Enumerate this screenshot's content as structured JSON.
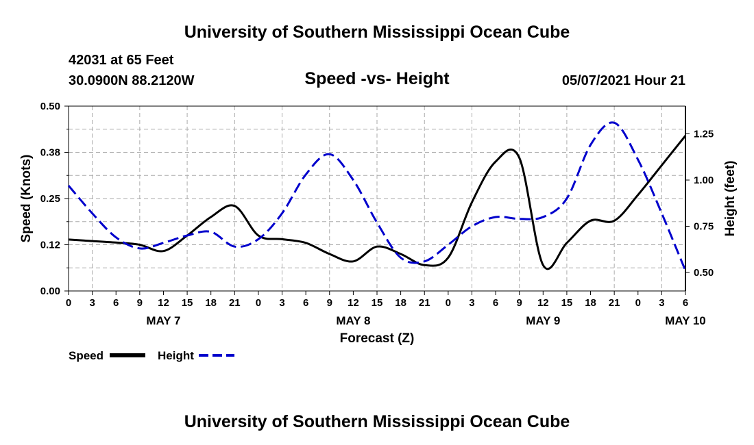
{
  "header": {
    "title": "University of Southern Mississippi Ocean Cube",
    "station": "42031 at 65 Feet",
    "coords": "30.0900N  88.2120W",
    "subtitle": "Speed -vs- Height",
    "datetime": "05/07/2021 Hour 21"
  },
  "footer": {
    "title": "University of Southern Mississippi Ocean Cube"
  },
  "legend": {
    "speed_label": "Speed",
    "height_label": "Height"
  },
  "colors": {
    "speed": "#000000",
    "height": "#0000cc",
    "grid": "#aaaaaa"
  },
  "chart_data": {
    "type": "line",
    "title": "Speed -vs- Height",
    "xlabel": "Forecast (Z)",
    "ylabel": "Speed (Knots)",
    "y2label": "Height (feet)",
    "xlim": [
      0,
      78
    ],
    "ylim": [
      0,
      0.5
    ],
    "y2lim": [
      0.4,
      1.4
    ],
    "x_ticks": [
      0,
      3,
      6,
      9,
      12,
      15,
      18,
      21,
      24,
      27,
      30,
      33,
      36,
      39,
      42,
      45,
      48,
      51,
      54,
      57,
      60,
      63,
      66,
      69,
      72,
      75,
      78
    ],
    "x_tick_labels": [
      "0",
      "3",
      "6",
      "9",
      "12",
      "15",
      "18",
      "21",
      "0",
      "3",
      "6",
      "9",
      "12",
      "15",
      "18",
      "21",
      "0",
      "3",
      "6",
      "9",
      "12",
      "15",
      "18",
      "21",
      "0",
      "3",
      "6"
    ],
    "date_labels": [
      {
        "x": 12,
        "text": "MAY 7"
      },
      {
        "x": 36,
        "text": "MAY 8"
      },
      {
        "x": 60,
        "text": "MAY 9"
      },
      {
        "x": 78,
        "text": "MAY 10"
      }
    ],
    "y_ticks": [
      0.0,
      0.125,
      0.25,
      0.375,
      0.5
    ],
    "y_tick_labels": [
      "0.00",
      "0.12",
      "0.25",
      "0.38",
      "0.50"
    ],
    "y2_ticks": [
      0.5,
      0.75,
      1.0,
      1.25
    ],
    "y2_tick_labels": [
      "0.50",
      "0.75",
      "1.00",
      "1.25"
    ],
    "grid": true,
    "series": [
      {
        "name": "Speed",
        "axis": "left",
        "style": "solid",
        "x": [
          0,
          3,
          6,
          9,
          12,
          15,
          18,
          21,
          24,
          27,
          30,
          33,
          36,
          39,
          42,
          45,
          48,
          51,
          54,
          57,
          60,
          63,
          66,
          69,
          72,
          75,
          78
        ],
        "values": [
          0.139,
          0.135,
          0.131,
          0.125,
          0.108,
          0.15,
          0.2,
          0.23,
          0.15,
          0.14,
          0.13,
          0.1,
          0.08,
          0.12,
          0.1,
          0.07,
          0.09,
          0.24,
          0.35,
          0.36,
          0.07,
          0.13,
          0.19,
          0.19,
          0.26,
          0.34,
          0.42
        ]
      },
      {
        "name": "Height",
        "axis": "right",
        "style": "dashed",
        "x": [
          0,
          3,
          6,
          9,
          12,
          15,
          18,
          21,
          24,
          27,
          30,
          33,
          36,
          39,
          42,
          45,
          48,
          51,
          54,
          57,
          60,
          63,
          66,
          69,
          72,
          75,
          78
        ],
        "values": [
          0.97,
          0.82,
          0.69,
          0.63,
          0.66,
          0.7,
          0.72,
          0.64,
          0.68,
          0.82,
          1.03,
          1.14,
          1.0,
          0.77,
          0.58,
          0.56,
          0.65,
          0.75,
          0.8,
          0.79,
          0.8,
          0.9,
          1.19,
          1.31,
          1.11,
          0.82,
          0.51
        ]
      }
    ]
  }
}
